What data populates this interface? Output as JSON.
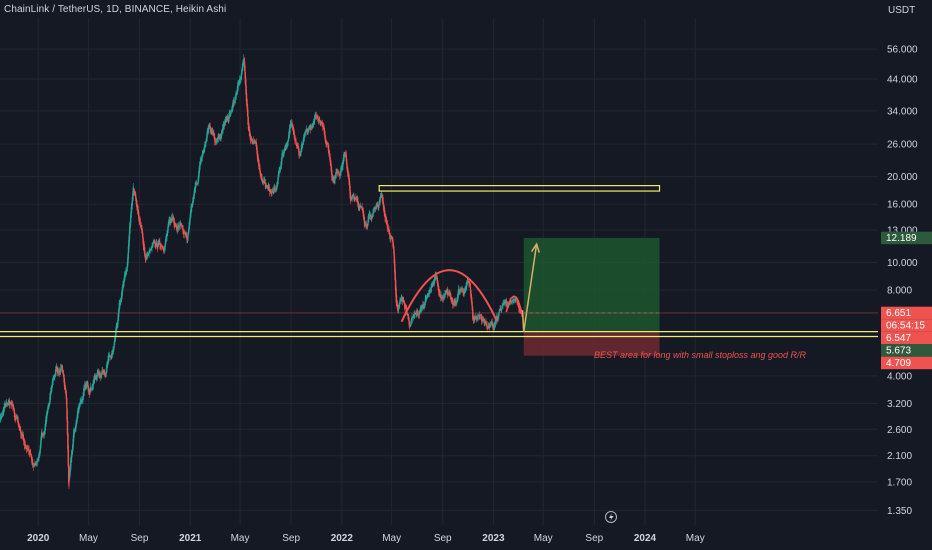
{
  "header": {
    "title": "ChainLink / TetherUS, 1D, BINANCE, Heikin Ashi",
    "unit": "USDT"
  },
  "colors": {
    "bg": "#151924",
    "up": "#26a69a",
    "down": "#ef5350",
    "grid": "#222631",
    "axis_text": "#d1d4dc",
    "level_line": "#f5e96b",
    "profit_zone": "#1e5d2e",
    "loss_zone": "#6e2a32",
    "arc": "#ef5350",
    "arrow": "#d9b06b",
    "note": "#ef5350"
  },
  "annotation": {
    "note": "BEST area for long with small stoploss ang good R/R"
  },
  "price_badges": [
    {
      "label": "12.189",
      "value": 12.189,
      "color": "#2d5a3d"
    },
    {
      "label": "6.651",
      "value": 6.651,
      "color": "#ef5350"
    },
    {
      "label": "06:54:15",
      "value": 6.2,
      "color": "#ef5350"
    },
    {
      "label": "6.547",
      "value": 5.9,
      "color": "#ef5350"
    },
    {
      "label": "5.673",
      "value": 5.35,
      "color": "#2d5a3d"
    },
    {
      "label": "4.709",
      "value": 4.6,
      "color": "#ef5350"
    }
  ],
  "chart_data": {
    "type": "candlestick",
    "title": "ChainLink / TetherUS, 1D, BINANCE, Heikin Ashi",
    "xlabel": "",
    "ylabel": "USDT",
    "y_scale": "log",
    "ylim": [
      1.2,
      72
    ],
    "x_range": [
      "2019-10-01",
      "2025-07-15"
    ],
    "y_ticks": [
      {
        "label": "1.350",
        "value": 1.35
      },
      {
        "label": "1.700",
        "value": 1.7
      },
      {
        "label": "2.100",
        "value": 2.1
      },
      {
        "label": "2.600",
        "value": 2.6
      },
      {
        "label": "3.200",
        "value": 3.2
      },
      {
        "label": "4.000",
        "value": 4.0
      },
      {
        "label": "8.000",
        "value": 8.0
      },
      {
        "label": "10.000",
        "value": 10.0
      },
      {
        "label": "13.000",
        "value": 13.0
      },
      {
        "label": "16.000",
        "value": 16.0
      },
      {
        "label": "20.000",
        "value": 20.0
      },
      {
        "label": "26.000",
        "value": 26.0
      },
      {
        "label": "34.000",
        "value": 34.0
      },
      {
        "label": "44.000",
        "value": 44.0
      },
      {
        "label": "56.000",
        "value": 56.0
      }
    ],
    "x_ticks": [
      {
        "label": "2020",
        "date": "2020-01-01",
        "bold": true
      },
      {
        "label": "May",
        "date": "2020-05-01",
        "bold": false
      },
      {
        "label": "Sep",
        "date": "2020-09-01",
        "bold": false
      },
      {
        "label": "2021",
        "date": "2021-01-01",
        "bold": true
      },
      {
        "label": "May",
        "date": "2021-05-01",
        "bold": false
      },
      {
        "label": "Sep",
        "date": "2021-09-01",
        "bold": false
      },
      {
        "label": "2022",
        "date": "2022-01-01",
        "bold": true
      },
      {
        "label": "May",
        "date": "2022-05-01",
        "bold": false
      },
      {
        "label": "Sep",
        "date": "2022-09-01",
        "bold": false
      },
      {
        "label": "2023",
        "date": "2023-01-01",
        "bold": true
      },
      {
        "label": "May",
        "date": "2023-05-01",
        "bold": false
      },
      {
        "label": "Sep",
        "date": "2023-09-01",
        "bold": false
      },
      {
        "label": "2024",
        "date": "2024-01-01",
        "bold": true
      },
      {
        "label": "May",
        "date": "2024-05-01",
        "bold": false
      }
    ],
    "price_path": [
      [
        "2019-10-01",
        2.9
      ],
      [
        "2019-10-20",
        3.2
      ],
      [
        "2019-11-10",
        2.8
      ],
      [
        "2019-12-01",
        2.3
      ],
      [
        "2019-12-20",
        1.9
      ],
      [
        "2020-01-05",
        2.2
      ],
      [
        "2020-01-25",
        3.2
      ],
      [
        "2020-02-12",
        4.3
      ],
      [
        "2020-02-28",
        4.0
      ],
      [
        "2020-03-08",
        3.3
      ],
      [
        "2020-03-14",
        1.6
      ],
      [
        "2020-03-25",
        2.4
      ],
      [
        "2020-04-10",
        3.3
      ],
      [
        "2020-05-01",
        3.7
      ],
      [
        "2020-05-25",
        4.1
      ],
      [
        "2020-06-15",
        4.4
      ],
      [
        "2020-07-01",
        4.8
      ],
      [
        "2020-07-15",
        7.0
      ],
      [
        "2020-08-01",
        9.5
      ],
      [
        "2020-08-10",
        14.5
      ],
      [
        "2020-08-16",
        19.0
      ],
      [
        "2020-08-25",
        16.0
      ],
      [
        "2020-09-05",
        12.5
      ],
      [
        "2020-09-15",
        10.5
      ],
      [
        "2020-10-01",
        11.0
      ],
      [
        "2020-10-15",
        11.5
      ],
      [
        "2020-11-01",
        12.0
      ],
      [
        "2020-11-20",
        14.5
      ],
      [
        "2020-12-10",
        13.5
      ],
      [
        "2020-12-25",
        12.0
      ],
      [
        "2021-01-10",
        17.0
      ],
      [
        "2021-01-25",
        22.0
      ],
      [
        "2021-02-15",
        30.0
      ],
      [
        "2021-03-01",
        28.0
      ],
      [
        "2021-03-20",
        29.5
      ],
      [
        "2021-04-05",
        32.0
      ],
      [
        "2021-04-25",
        40.0
      ],
      [
        "2021-05-10",
        50.0
      ],
      [
        "2021-05-20",
        30.0
      ],
      [
        "2021-06-10",
        24.0
      ],
      [
        "2021-06-25",
        19.0
      ],
      [
        "2021-07-10",
        18.0
      ],
      [
        "2021-07-25",
        17.5
      ],
      [
        "2021-08-10",
        24.0
      ],
      [
        "2021-08-25",
        28.0
      ],
      [
        "2021-09-05",
        31.0
      ],
      [
        "2021-09-20",
        24.0
      ],
      [
        "2021-10-05",
        27.0
      ],
      [
        "2021-10-20",
        30.0
      ],
      [
        "2021-11-10",
        33.0
      ],
      [
        "2021-11-25",
        27.0
      ],
      [
        "2021-12-10",
        20.0
      ],
      [
        "2021-12-30",
        22.0
      ],
      [
        "2022-01-10",
        24.0
      ],
      [
        "2022-01-22",
        16.0
      ],
      [
        "2022-02-05",
        17.5
      ],
      [
        "2022-02-20",
        14.5
      ],
      [
        "2022-03-10",
        14.0
      ],
      [
        "2022-03-25",
        16.0
      ],
      [
        "2022-04-05",
        17.5
      ],
      [
        "2022-04-20",
        13.5
      ],
      [
        "2022-05-05",
        11.0
      ],
      [
        "2022-05-12",
        7.0
      ],
      [
        "2022-05-25",
        7.5
      ],
      [
        "2022-06-15",
        6.0
      ],
      [
        "2022-06-25",
        6.3
      ],
      [
        "2022-07-10",
        6.8
      ],
      [
        "2022-07-28",
        8.0
      ],
      [
        "2022-08-15",
        8.8
      ],
      [
        "2022-08-30",
        7.2
      ],
      [
        "2022-09-15",
        7.6
      ],
      [
        "2022-10-01",
        7.5
      ],
      [
        "2022-10-20",
        7.8
      ],
      [
        "2022-11-05",
        8.5
      ],
      [
        "2022-11-12",
        6.3
      ],
      [
        "2022-11-25",
        6.6
      ],
      [
        "2022-12-10",
        6.2
      ],
      [
        "2022-12-31",
        5.8
      ],
      [
        "2023-01-15",
        6.5
      ],
      [
        "2023-02-01",
        7.2
      ],
      [
        "2023-02-15",
        7.6
      ],
      [
        "2023-03-01",
        7.0
      ],
      [
        "2023-03-10",
        6.5
      ]
    ],
    "horizontal_levels": [
      {
        "name": "support",
        "value": 5.72
      },
      {
        "name": "support-lower",
        "value": 5.5
      }
    ],
    "resistance_box": {
      "start": "2022-04-01",
      "end": "2024-02-05",
      "low": 17.8,
      "high": 18.6
    },
    "position": {
      "type": "long",
      "start": "2023-03-15",
      "end": "2024-02-05",
      "entry": 5.673,
      "target": 12.189,
      "stop": 4.709
    },
    "arc": {
      "start": "2022-05-25",
      "end": "2023-01-10",
      "base": 6.2,
      "peak": 9.4
    },
    "small_arc": {
      "start": "2023-02-01",
      "end": "2023-03-10",
      "base": 6.7,
      "peak": 7.6
    },
    "arrow": [
      [
        "2023-03-12",
        6.8
      ],
      [
        "2023-03-15",
        5.7
      ],
      [
        "2023-04-15",
        11.6
      ]
    ],
    "last_price": 6.651
  }
}
